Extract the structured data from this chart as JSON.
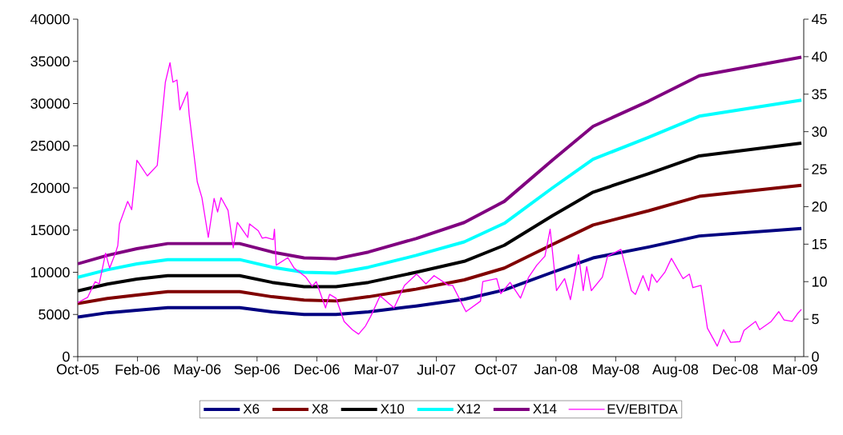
{
  "chart_data": {
    "type": "line",
    "x": [
      "2005-10-27",
      "2005-12-17",
      "2006-02-06",
      "2006-03-31",
      "2006-08-02",
      "2006-09-27",
      "2006-11-21",
      "2007-01-15",
      "2007-03-12",
      "2007-06-02",
      "2007-08-24",
      "2007-11-01",
      "2008-01-23",
      "2008-04-02",
      "2008-07-07",
      "2008-10-02",
      "2009-03-27"
    ],
    "series": [
      {
        "name": "X6",
        "color": "#000080",
        "values": [
          4700,
          5200,
          5500,
          5800,
          5800,
          5300,
          5000,
          5000,
          5300,
          6000,
          6800,
          7900,
          10000,
          11700,
          13000,
          14300,
          15200
        ]
      },
      {
        "name": "X8",
        "color": "#800000",
        "values": [
          6300,
          6900,
          7300,
          7700,
          7700,
          7100,
          6700,
          6600,
          7100,
          8000,
          9100,
          10500,
          13300,
          15600,
          17300,
          19000,
          20300
        ]
      },
      {
        "name": "X10",
        "color": "#000000",
        "values": [
          7800,
          8600,
          9200,
          9600,
          9600,
          8800,
          8300,
          8300,
          8800,
          10000,
          11300,
          13200,
          16700,
          19500,
          21700,
          23800,
          25300
        ]
      },
      {
        "name": "X12",
        "color": "#00ffff",
        "values": [
          9400,
          10300,
          11000,
          11500,
          11500,
          10600,
          10000,
          9900,
          10600,
          12000,
          13600,
          15800,
          20000,
          23400,
          26000,
          28500,
          30400
        ]
      },
      {
        "name": "X14",
        "color": "#800080",
        "values": [
          11000,
          12000,
          12800,
          13400,
          13400,
          12400,
          11700,
          11600,
          12400,
          14000,
          15900,
          18400,
          23300,
          27300,
          30300,
          33300,
          35500
        ]
      },
      {
        "name": "EV/EBITDA",
        "color": "#ff00ff",
        "axis": "y2",
        "x": [
          "2005-10-27",
          "2005-11-13",
          "2005-11-26",
          "2005-12-03",
          "2005-12-14",
          "2005-12-21",
          "2005-12-31",
          "2006-01-04",
          "2006-01-07",
          "2006-01-21",
          "2006-01-28",
          "2006-02-06",
          "2006-02-24",
          "2006-03-13",
          "2006-03-17",
          "2006-03-27",
          "2006-04-04",
          "2006-04-09",
          "2006-04-16",
          "2006-04-21",
          "2006-05-04",
          "2006-05-07",
          "2006-05-21",
          "2006-05-29",
          "2006-06-09",
          "2006-06-19",
          "2006-06-25",
          "2006-07-01",
          "2006-07-13",
          "2006-07-22",
          "2006-07-29",
          "2006-08-16",
          "2006-08-19",
          "2006-09-03",
          "2006-09-10",
          "2006-09-16",
          "2006-09-29",
          "2006-10-01",
          "2006-10-04",
          "2006-10-24",
          "2006-11-04",
          "2006-11-24",
          "2006-12-05",
          "2006-12-12",
          "2006-12-28",
          "2007-01-04",
          "2007-01-15",
          "2007-01-29",
          "2007-02-12",
          "2007-02-23",
          "2007-03-07",
          "2007-03-16",
          "2007-04-01",
          "2007-04-25",
          "2007-05-13",
          "2007-06-03",
          "2007-06-19",
          "2007-07-03",
          "2007-07-28",
          "2007-08-04",
          "2007-08-27",
          "2007-09-21",
          "2007-09-25",
          "2007-10-19",
          "2007-10-26",
          "2007-11-11",
          "2007-11-29",
          "2007-12-13",
          "2007-12-27",
          "2008-01-10",
          "2008-01-19",
          "2008-01-30",
          "2008-02-13",
          "2008-02-23",
          "2008-03-08",
          "2008-03-16",
          "2008-03-22",
          "2008-03-30",
          "2008-04-18",
          "2008-04-27",
          "2008-05-20",
          "2008-05-27",
          "2008-06-07",
          "2008-06-14",
          "2008-06-27",
          "2008-07-07",
          "2008-07-12",
          "2008-07-21",
          "2008-08-04",
          "2008-08-15",
          "2008-09-04",
          "2008-09-15",
          "2008-09-21",
          "2008-10-05",
          "2008-10-16",
          "2008-11-02",
          "2008-11-13",
          "2008-11-25",
          "2008-12-11",
          "2008-12-18",
          "2009-01-07",
          "2009-01-14",
          "2009-02-03",
          "2009-02-16",
          "2009-02-25",
          "2009-03-11",
          "2009-03-20",
          "2009-03-27"
        ],
        "values": [
          7.2,
          7.9,
          10.0,
          9.7,
          13.8,
          11.8,
          13.8,
          14.8,
          17.7,
          20.7,
          19.6,
          26.2,
          24.1,
          25.5,
          28.7,
          36.6,
          39.2,
          36.6,
          36.9,
          32.9,
          35.3,
          32.3,
          23.3,
          21.2,
          15.9,
          21.1,
          19.3,
          21.2,
          19.5,
          14.5,
          17.9,
          15.9,
          17.7,
          16.8,
          15.8,
          15.9,
          15.6,
          17.0,
          12.2,
          13.2,
          11.8,
          10.6,
          9.4,
          10.0,
          6.5,
          8.3,
          7.8,
          4.7,
          3.6,
          3.0,
          4.1,
          5.4,
          8.1,
          6.5,
          9.5,
          11.0,
          9.7,
          10.8,
          9.5,
          9.5,
          6.0,
          7.4,
          10.0,
          10.4,
          8.4,
          9.9,
          7.8,
          10.6,
          12.2,
          13.4,
          17.0,
          8.8,
          10.4,
          7.6,
          13.6,
          8.8,
          12.0,
          8.8,
          10.6,
          13.4,
          14.3,
          12.2,
          8.8,
          8.3,
          10.8,
          8.8,
          11.0,
          9.9,
          11.3,
          13.1,
          10.4,
          11.0,
          9.2,
          9.5,
          3.8,
          1.4,
          3.6,
          1.9,
          2.0,
          3.5,
          4.7,
          3.6,
          4.7,
          6.0,
          4.9,
          4.7,
          5.7,
          6.3
        ]
      }
    ],
    "xlim": [
      "2005-10-27",
      "2009-03-31"
    ],
    "xticks": [
      {
        "value": "2005-10-27",
        "label": "Oct-05"
      },
      {
        "value": "2006-02-07",
        "label": "Feb-06"
      },
      {
        "value": "2006-05-21",
        "label": "May-06"
      },
      {
        "value": "2006-09-01",
        "label": "Sep-06"
      },
      {
        "value": "2006-12-13",
        "label": "Dec-06"
      },
      {
        "value": "2007-03-26",
        "label": "Mar-07"
      },
      {
        "value": "2007-07-07",
        "label": "Jul-07"
      },
      {
        "value": "2007-10-18",
        "label": "Oct-07"
      },
      {
        "value": "2008-01-29",
        "label": "Jan-08"
      },
      {
        "value": "2008-05-11",
        "label": "May-08"
      },
      {
        "value": "2008-08-22",
        "label": "Aug-08"
      },
      {
        "value": "2008-12-03",
        "label": "Dec-08"
      },
      {
        "value": "2009-03-16",
        "label": "Mar-09"
      }
    ],
    "ylim": [
      0,
      40000
    ],
    "yticks": [
      0,
      5000,
      10000,
      15000,
      20000,
      25000,
      30000,
      35000,
      40000
    ],
    "y2lim": [
      0,
      45
    ],
    "y2ticks": [
      0,
      5,
      10,
      15,
      20,
      25,
      30,
      35,
      40,
      45
    ],
    "legend": "bottom",
    "grid": false,
    "marker": "none",
    "line_style": "solid"
  }
}
